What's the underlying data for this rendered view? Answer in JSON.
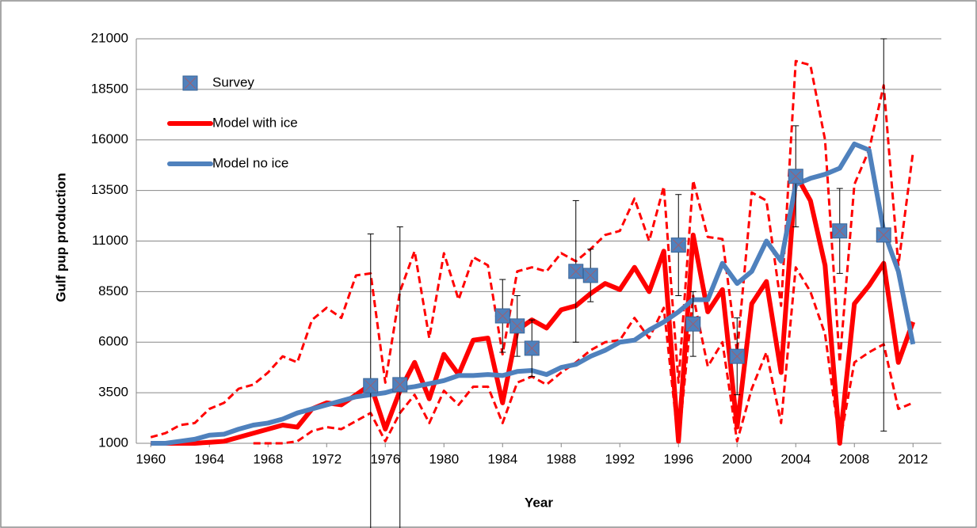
{
  "chart_data": {
    "type": "line",
    "xlabel": "Year",
    "ylabel": "Gulf pup production",
    "x": [
      1960,
      1961,
      1962,
      1963,
      1964,
      1965,
      1966,
      1967,
      1968,
      1969,
      1970,
      1971,
      1972,
      1973,
      1974,
      1975,
      1976,
      1977,
      1978,
      1979,
      1980,
      1981,
      1982,
      1983,
      1984,
      1985,
      1986,
      1987,
      1988,
      1989,
      1990,
      1991,
      1992,
      1993,
      1994,
      1995,
      1996,
      1997,
      1998,
      1999,
      2000,
      2001,
      2002,
      2003,
      2004,
      2005,
      2006,
      2007,
      2008,
      2009,
      2010,
      2011,
      2012
    ],
    "xlim": [
      1959.5,
      2013.5
    ],
    "xticks": [
      1960,
      1964,
      1968,
      1972,
      1976,
      1980,
      1984,
      1988,
      1992,
      1996,
      2000,
      2004,
      2008,
      2012
    ],
    "ylim": [
      1000,
      21000
    ],
    "yticks": [
      1000,
      3500,
      6000,
      8500,
      11000,
      13500,
      16000,
      18500,
      21000
    ],
    "grid": true,
    "legend": "upper left",
    "series": [
      {
        "name": "Survey",
        "type": "scatter",
        "color": "#4f81bd",
        "x": [
          1975,
          1977,
          1984,
          1985,
          1986,
          1989,
          1990,
          1996,
          1997,
          2000,
          2004,
          2007,
          2010
        ],
        "values": [
          3850,
          3900,
          7300,
          6800,
          5700,
          9500,
          9300,
          10800,
          6900,
          5300,
          14200,
          11500,
          11300
        ],
        "errors": [
          7500,
          7800,
          1800,
          1500,
          1400,
          3500,
          1300,
          2500,
          1600,
          1900,
          2500,
          2100,
          9700
        ]
      },
      {
        "name": "Model with ice",
        "color": "#ff0000",
        "width": 6,
        "values": [
          1000,
          1000,
          1000,
          1000,
          1050,
          1100,
          1300,
          1500,
          1700,
          1900,
          1800,
          2700,
          3000,
          2900,
          3400,
          3900,
          1700,
          3600,
          5000,
          3200,
          5400,
          4400,
          6100,
          6200,
          3000,
          6600,
          7100,
          6700,
          7600,
          7800,
          8400,
          8900,
          8600,
          9700,
          8500,
          10500,
          1100,
          11300,
          7500,
          8600,
          1800,
          7900,
          9000,
          4500,
          14300,
          13000,
          9800,
          1000,
          7900,
          8800,
          9900,
          5000,
          7000
        ]
      },
      {
        "name": "Model no ice",
        "color": "#4f81bd",
        "width": 6,
        "values": [
          1000,
          1000,
          1100,
          1200,
          1400,
          1450,
          1700,
          1900,
          2000,
          2200,
          2500,
          2700,
          2900,
          3100,
          3300,
          3400,
          3500,
          3700,
          3800,
          3950,
          4100,
          4350,
          4350,
          4400,
          4350,
          4550,
          4600,
          4400,
          4750,
          4900,
          5300,
          5600,
          6000,
          6100,
          6600,
          7000,
          7500,
          8100,
          8100,
          9900,
          8900,
          9500,
          11000,
          10000,
          13800,
          14100,
          14300,
          14600,
          15800,
          15500,
          11500,
          9500,
          5900
        ]
      },
      {
        "color": "#ff0000",
        "width": 3,
        "dash": true,
        "values": [
          1300,
          1500,
          1900,
          2000,
          2700,
          3000,
          3700,
          3900,
          4500,
          5300,
          5000,
          7100,
          7700,
          7200,
          9300,
          9400,
          4000,
          8500,
          10500,
          6200,
          10400,
          8100,
          10200,
          9800,
          5400,
          9500,
          9700,
          9500,
          10400,
          10000,
          10600,
          11300,
          11500,
          13100,
          11000,
          13700,
          4000,
          14000,
          11200,
          11100,
          5500,
          13400,
          13000,
          7800,
          19900,
          19700,
          16000,
          5000,
          13800,
          15500,
          18700,
          9800,
          15400
        ]
      },
      {
        "color": "#ff0000",
        "width": 3,
        "dash": true,
        "values": [
          null,
          null,
          null,
          null,
          null,
          null,
          null,
          1000,
          1000,
          1000,
          1100,
          1600,
          1800,
          1700,
          2100,
          2500,
          1100,
          2500,
          3400,
          2000,
          3600,
          2900,
          3800,
          3800,
          2000,
          4000,
          4300,
          3900,
          4500,
          5000,
          5600,
          6000,
          6100,
          7200,
          6200,
          7700,
          1000,
          8300,
          4800,
          6000,
          1100,
          3700,
          5500,
          2000,
          9700,
          8500,
          6400,
          1000,
          5000,
          5500,
          5900,
          2700,
          3000
        ]
      }
    ]
  }
}
